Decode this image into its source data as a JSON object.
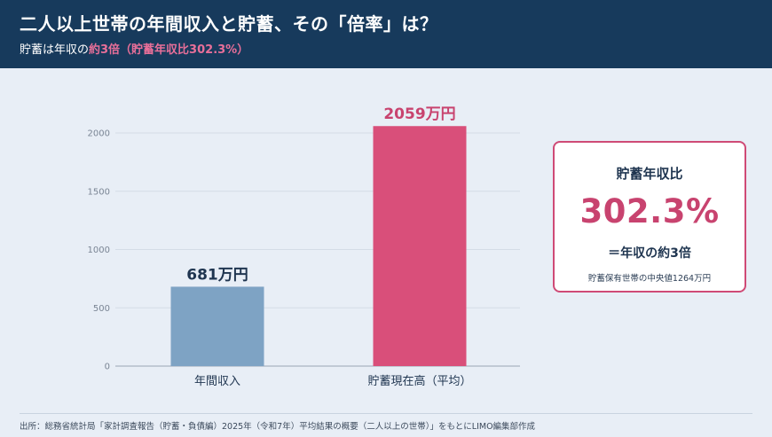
{
  "header": {
    "title": "二人以上世帯の年間収入と貯蓄、その「倍率」は？",
    "subtitle_prefix": "貯蓄は年収の",
    "subtitle_highlight": "約3倍（貯蓄年収比302.3%）"
  },
  "chart_data": {
    "type": "bar",
    "categories": [
      "年間収入",
      "貯蓄現在高（平均）"
    ],
    "values": [
      681,
      2059
    ],
    "data_labels": [
      "681万円",
      "2059万円"
    ],
    "bar_colors": [
      "#7ea3c4",
      "#d94f7a"
    ],
    "ylim": [
      0,
      2000
    ],
    "yticks": [
      0,
      500,
      1000,
      1500,
      2000
    ],
    "ytick_labels": [
      "0",
      "500",
      "1000",
      "1500",
      "2000"
    ],
    "grid": true,
    "title": "",
    "xlabel": "",
    "ylabel": ""
  },
  "card": {
    "heading": "貯蓄年収比",
    "big_value": "302.3%",
    "sub": "＝年収の約3倍",
    "note": "貯蓄保有世帯の中央値1264万円"
  },
  "source": "出所：総務省統計局「家計調査報告（貯蓄・負債編）2025年（令和7年）平均結果の概要（二人以上の世帯）」をもとにLIMO編集部作成",
  "colors": {
    "header_bg": "#173a5c",
    "page_bg": "#e8eef6",
    "accent_pink": "#d94f7a",
    "card_border": "#cf4a76",
    "big_value": "#c8436f",
    "bar_blue": "#7ea3c4"
  }
}
